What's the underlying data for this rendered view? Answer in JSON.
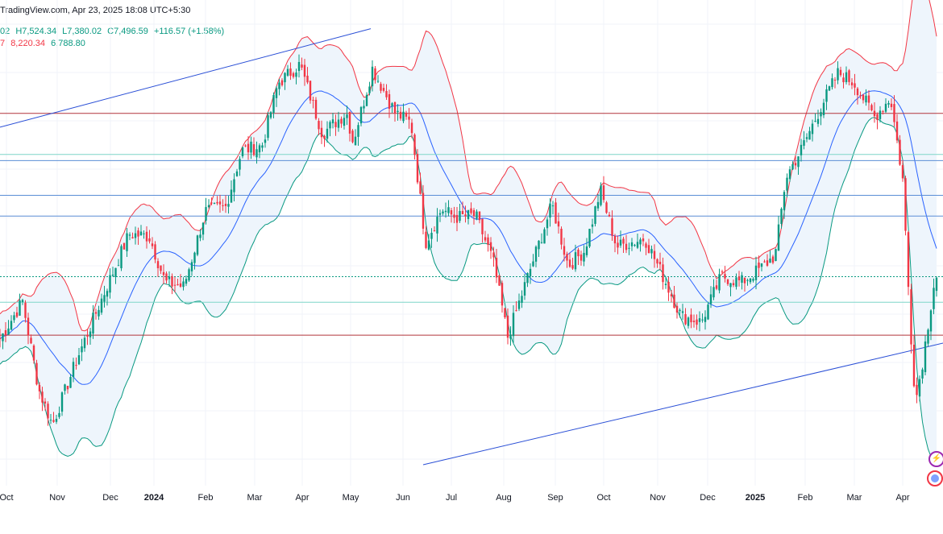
{
  "header": {
    "source_line": "TradingView.com, Apr 23, 2025 18:08 UTC+5:30",
    "ohlc_fragment": "02",
    "high": "H7,524.34",
    "low": "L7,380.02",
    "close": "C7,496.59",
    "change": "+116.57 (+1.58%)",
    "bb_fragment": "7",
    "bb_upper": "8,220.34",
    "bb_lower": "6,788.80"
  },
  "colors": {
    "up": "#089981",
    "down": "#f23645",
    "basis": "#2962ff",
    "upper_band": "#f23645",
    "lower_band": "#089981",
    "band_fill": "#eef5fc",
    "trendline": "#2a4fd6",
    "resistance": "#b2343b",
    "level_blue": "#5b8ed6",
    "level_teal": "#7fd6c8"
  },
  "icons": [
    "bolt-icon",
    "globe-icon"
  ],
  "chart_data": {
    "type": "candlestick",
    "title": "",
    "xlabel": "",
    "ylabel": "",
    "x_tick_labels": [
      "Oct",
      "Nov",
      "Dec",
      "2024",
      "Feb",
      "Mar",
      "Apr",
      "May",
      "Jun",
      "Jul",
      "Aug",
      "Sep",
      "Oct",
      "Nov",
      "Dec",
      "2025",
      "Feb",
      "Mar",
      "Apr"
    ],
    "y_axis_labels_visible": false,
    "grid": true,
    "indicators": [
      "Bollinger Bands"
    ],
    "price_points": [
      {
        "x": 0,
        "close": 7200
      },
      {
        "x": 28,
        "close": 7380
      },
      {
        "x": 48,
        "close": 6960
      },
      {
        "x": 65,
        "close": 6790
      },
      {
        "x": 95,
        "close": 7100
      },
      {
        "x": 125,
        "close": 7380
      },
      {
        "x": 160,
        "close": 7700
      },
      {
        "x": 185,
        "close": 7690
      },
      {
        "x": 205,
        "close": 7470
      },
      {
        "x": 228,
        "close": 7450
      },
      {
        "x": 255,
        "close": 7810
      },
      {
        "x": 280,
        "close": 7830
      },
      {
        "x": 300,
        "close": 8100
      },
      {
        "x": 325,
        "close": 8120
      },
      {
        "x": 345,
        "close": 8420
      },
      {
        "x": 372,
        "close": 8510
      },
      {
        "x": 400,
        "close": 8180
      },
      {
        "x": 430,
        "close": 8280
      },
      {
        "x": 438,
        "close": 8140
      },
      {
        "x": 462,
        "close": 8490
      },
      {
        "x": 490,
        "close": 8280
      },
      {
        "x": 510,
        "close": 8230
      },
      {
        "x": 528,
        "close": 7660
      },
      {
        "x": 548,
        "close": 7820
      },
      {
        "x": 565,
        "close": 7780
      },
      {
        "x": 590,
        "close": 7790
      },
      {
        "x": 612,
        "close": 7570
      },
      {
        "x": 630,
        "close": 7210
      },
      {
        "x": 655,
        "close": 7500
      },
      {
        "x": 685,
        "close": 7840
      },
      {
        "x": 705,
        "close": 7550
      },
      {
        "x": 725,
        "close": 7620
      },
      {
        "x": 745,
        "close": 7910
      },
      {
        "x": 765,
        "close": 7640
      },
      {
        "x": 800,
        "close": 7680
      },
      {
        "x": 820,
        "close": 7520
      },
      {
        "x": 845,
        "close": 7310
      },
      {
        "x": 870,
        "close": 7280
      },
      {
        "x": 895,
        "close": 7500
      },
      {
        "x": 920,
        "close": 7470
      },
      {
        "x": 945,
        "close": 7540
      },
      {
        "x": 962,
        "close": 7600
      },
      {
        "x": 975,
        "close": 7970
      },
      {
        "x": 995,
        "close": 8110
      },
      {
        "x": 1020,
        "close": 8320
      },
      {
        "x": 1040,
        "close": 8470
      },
      {
        "x": 1060,
        "close": 8420
      },
      {
        "x": 1085,
        "close": 8260
      },
      {
        "x": 1105,
        "close": 8350
      },
      {
        "x": 1120,
        "close": 7960
      },
      {
        "x": 1130,
        "close": 7230
      },
      {
        "x": 1136,
        "close": 6900
      },
      {
        "x": 1145,
        "close": 7100
      },
      {
        "x": 1160,
        "close": 7497
      }
    ],
    "horizontal_levels": [
      {
        "name": "resistance-high",
        "value": 8276
      },
      {
        "name": "teal-level-1",
        "value": 8080
      },
      {
        "name": "blue-level-1",
        "value": 8051
      },
      {
        "name": "blue-level-2",
        "value": 7885
      },
      {
        "name": "blue-level-3",
        "value": 7786
      },
      {
        "name": "current-close",
        "value": 7497
      },
      {
        "name": "teal-level-2",
        "value": 7375
      },
      {
        "name": "support-low",
        "value": 7218
      }
    ],
    "trendlines": [
      {
        "name": "upper-trendline",
        "from": {
          "x": 0,
          "y": 8210
        },
        "to": {
          "x": 460,
          "y": 8680
        }
      },
      {
        "name": "lower-trendline",
        "from": {
          "x": 525,
          "y": 6600
        },
        "to": {
          "x": 1170,
          "y": 7180
        }
      }
    ]
  }
}
